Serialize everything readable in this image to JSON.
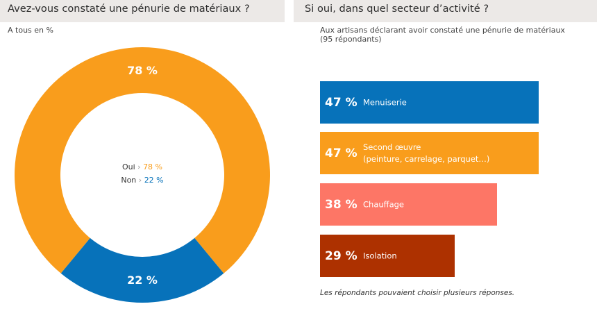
{
  "left": {
    "title": "Avez-vous constaté une pénurie de matériaux ?",
    "subtitle": "A tous en %"
  },
  "right": {
    "title": "Si oui, dans quel secteur d’activité ?",
    "subtitle_line1": "Aux artisans déclarant avoir constaté une pénurie de matériaux",
    "subtitle_line2": "(95 répondants)",
    "footnote": "Les répondants pouvaient choisir plusieurs réponses."
  },
  "colors": {
    "oui": "#f99d1c",
    "non": "#0772ba",
    "menuiserie": "#0772ba",
    "second_oeuvre": "#f99d1c",
    "chauffage": "#fd7666",
    "isolation": "#ad3100"
  },
  "chart_data": [
    {
      "type": "pie",
      "title": "Avez-vous constaté une pénurie de matériaux ?",
      "subtitle": "A tous en %",
      "slices": [
        {
          "key": "oui",
          "name": "Oui",
          "value": 78,
          "label": "78 %",
          "legend_value": "78 %"
        },
        {
          "key": "non",
          "name": "Non",
          "value": 22,
          "label": "22 %",
          "legend_value": "22 %"
        }
      ],
      "legend_arrow": "›"
    },
    {
      "type": "bar",
      "orientation": "horizontal",
      "title": "Si oui, dans quel secteur d’activité ?",
      "xlim": [
        0,
        100
      ],
      "categories": [
        "Menuiserie",
        "Second œuvre (peinture, carrelage, parquet…)",
        "Chauffage",
        "Isolation"
      ],
      "values": [
        47,
        47,
        38,
        29
      ],
      "bars": [
        {
          "key": "menuiserie",
          "value": 47,
          "label": "47 %",
          "text_lines": [
            "Menuiserie"
          ]
        },
        {
          "key": "second_oeuvre",
          "value": 47,
          "label": "47 %",
          "text_lines": [
            "Second œuvre",
            "(peinture, carrelage, parquet…)"
          ]
        },
        {
          "key": "chauffage",
          "value": 38,
          "label": "38 %",
          "text_lines": [
            "Chauffage"
          ]
        },
        {
          "key": "isolation",
          "value": 29,
          "label": "29 %",
          "text_lines": [
            "Isolation"
          ]
        }
      ]
    }
  ]
}
